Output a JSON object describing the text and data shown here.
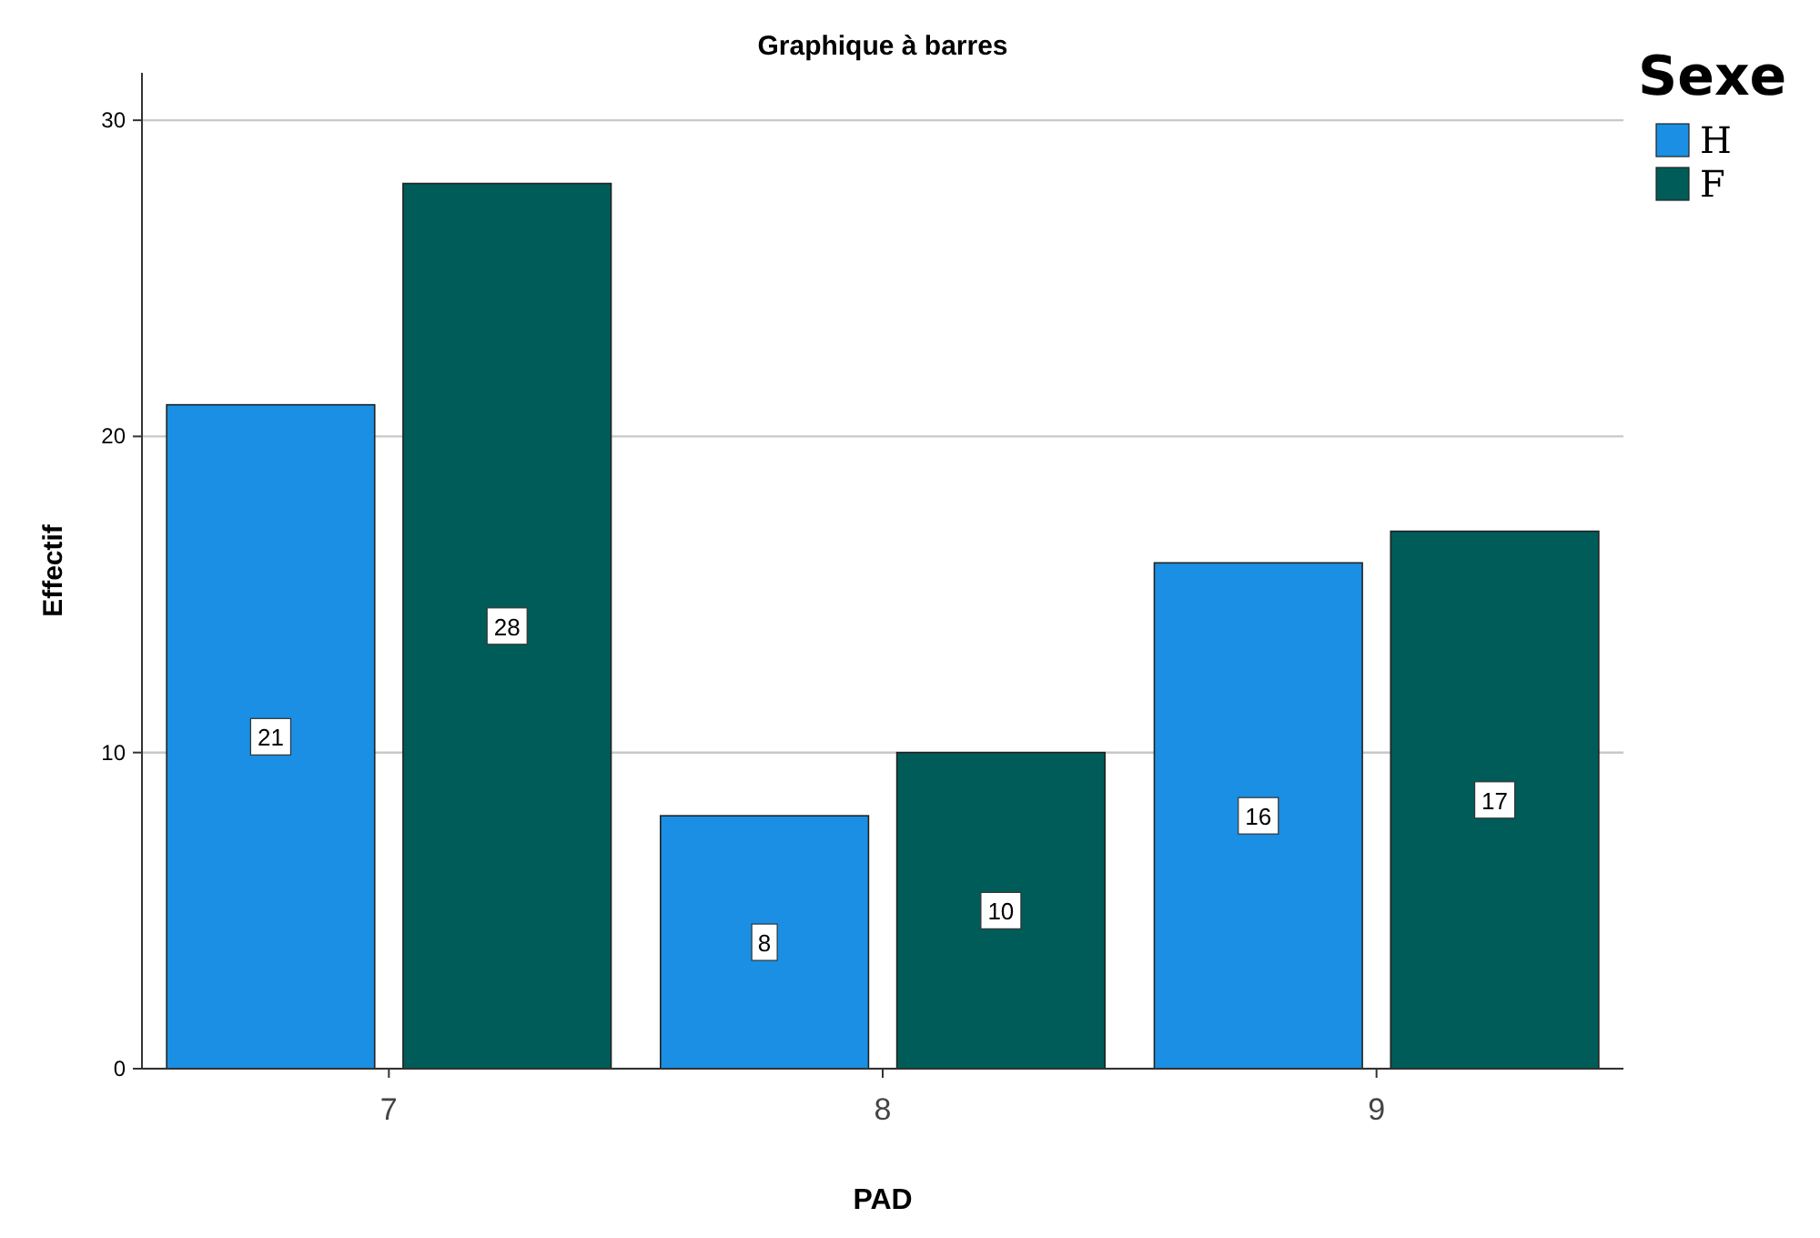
{
  "chart_data": {
    "type": "bar",
    "title": "Graphique à barres",
    "xlabel": "PAD",
    "ylabel": "Effectif",
    "legend_title": "Sexe",
    "categories": [
      "7",
      "8",
      "9"
    ],
    "series": [
      {
        "name": "H",
        "color": "#1a8fe3",
        "values": [
          21,
          8,
          16
        ]
      },
      {
        "name": "F",
        "color": "#005c58",
        "values": [
          28,
          10,
          17
        ]
      }
    ],
    "ylim": [
      0,
      31.5
    ],
    "yticks": [
      0,
      10,
      20,
      30
    ],
    "grid": "y",
    "legend": "top right",
    "data_labels": true
  }
}
